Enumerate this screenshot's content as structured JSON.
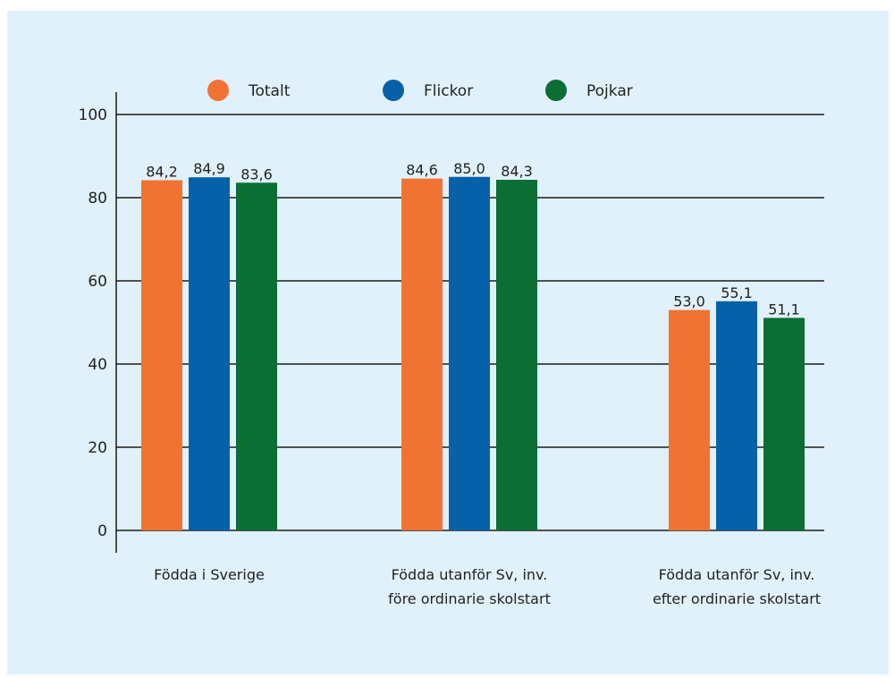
{
  "chart_data": {
    "type": "bar",
    "categories": [
      [
        "Födda i Sverige"
      ],
      [
        "Födda utanför Sv, inv.",
        "före ordinarie skolstart"
      ],
      [
        "Födda utanför Sv, inv.",
        "efter ordinarie skolstart"
      ]
    ],
    "series": [
      {
        "name": "Totalt",
        "color": "#f07334",
        "values": [
          84.2,
          84.6,
          53.0
        ],
        "labels": [
          "84,2",
          "84,6",
          "53,0"
        ]
      },
      {
        "name": "Flickor",
        "color": "#0761a8",
        "values": [
          84.9,
          85.0,
          55.1
        ],
        "labels": [
          "84,9",
          "85,0",
          "55,1"
        ]
      },
      {
        "name": "Pojkar",
        "color": "#0a6e35",
        "values": [
          83.6,
          84.3,
          51.1
        ],
        "labels": [
          "83,6",
          "84,3",
          "51,1"
        ]
      }
    ],
    "ylim": [
      0,
      100
    ],
    "yticks": [
      0,
      20,
      40,
      60,
      80,
      100
    ],
    "grid": true,
    "legend_position": "top"
  }
}
